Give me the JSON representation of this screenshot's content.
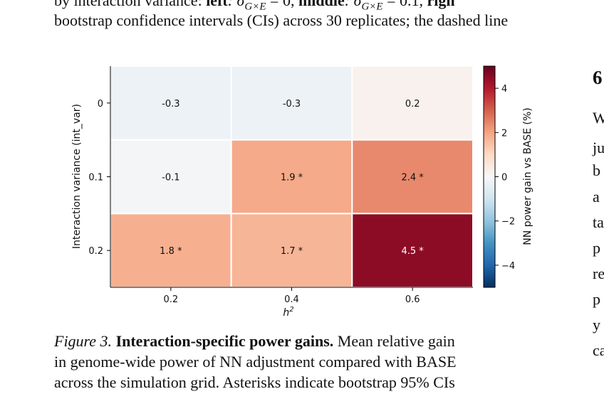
{
  "top_text": {
    "line1_prefix": "by interaction variance: ",
    "left_label": "left",
    "left_eq": ": σ",
    "left_sub": "G×E",
    "left_val": " = 0, ",
    "middle_label": "middle",
    "middle_eq": ": σ",
    "middle_sub": "G×E",
    "middle_val": " = 0.1, ",
    "right_label": "righ",
    "line2": "bootstrap confidence intervals (CIs) across 30 replicates; the dashed line"
  },
  "side_text": {
    "heading": "6",
    "lines": [
      "W",
      "ju",
      "b",
      "a",
      "ta",
      "p",
      "re",
      "p",
      "y",
      "ca"
    ]
  },
  "caption": {
    "figure_label": "Figure 3.",
    "title": "Interaction-specific power gains.",
    "line1_rest": " Mean relative gain",
    "line2": "in genome-wide power of NN adjustment compared with BASE",
    "line3": "across the simulation grid. Asterisks indicate bootstrap 95% CIs"
  },
  "chart_data": {
    "type": "heatmap",
    "xlabel": "h",
    "xlabel_sup": "2",
    "ylabel": "Interaction variance (int_var)",
    "x_categories": [
      "0.2",
      "0.4",
      "0.6"
    ],
    "y_categories": [
      "0",
      "0.1",
      "0.2"
    ],
    "values": [
      [
        -0.3,
        -0.3,
        0.2
      ],
      [
        -0.1,
        1.9,
        2.4
      ],
      [
        1.8,
        1.7,
        4.5
      ]
    ],
    "cell_labels": [
      [
        "-0.3",
        "-0.3",
        "0.2"
      ],
      [
        "-0.1",
        "1.9 *",
        "2.4 *"
      ],
      [
        "1.8 *",
        "1.7 *",
        "4.5 *"
      ]
    ],
    "colorbar": {
      "label": "NN power gain vs BASE (%)",
      "range": [
        -5,
        5
      ],
      "ticks": [
        4,
        2,
        0,
        -2,
        -4
      ],
      "tick_labels": [
        "4",
        "2",
        "0",
        "−2",
        "−4"
      ],
      "colormap": "RdBu_r",
      "colors": {
        "min": "#053061",
        "mid": "#f7f7f7",
        "max": "#67001f"
      }
    }
  }
}
